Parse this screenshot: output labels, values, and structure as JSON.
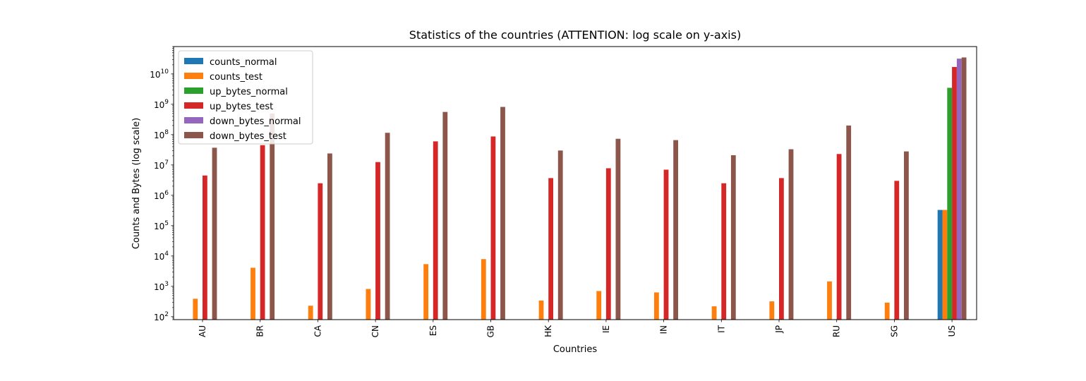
{
  "chart_data": {
    "type": "bar",
    "title": "Statistics of the countries (ATTENTION: log scale on y-axis)",
    "xlabel": "Countries",
    "ylabel": "Counts and Bytes (log scale)",
    "yscale": "log",
    "ylim": [
      80,
      80000000000
    ],
    "yticks": [
      {
        "base": "10",
        "exp": "2",
        "value": 100
      },
      {
        "base": "10",
        "exp": "3",
        "value": 1000
      },
      {
        "base": "10",
        "exp": "4",
        "value": 10000
      },
      {
        "base": "10",
        "exp": "5",
        "value": 100000
      },
      {
        "base": "10",
        "exp": "6",
        "value": 1000000
      },
      {
        "base": "10",
        "exp": "7",
        "value": 10000000
      },
      {
        "base": "10",
        "exp": "8",
        "value": 100000000
      },
      {
        "base": "10",
        "exp": "9",
        "value": 1000000000
      },
      {
        "base": "10",
        "exp": "10",
        "value": 10000000000
      }
    ],
    "grid": false,
    "legend_position": "top-left",
    "categories": [
      "AU",
      "BR",
      "CA",
      "CN",
      "ES",
      "GB",
      "HK",
      "IE",
      "IN",
      "IT",
      "JP",
      "RU",
      "SG",
      "US"
    ],
    "series": [
      {
        "name": "counts_normal",
        "color": "#1f77b4",
        "values": [
          null,
          null,
          null,
          null,
          null,
          null,
          null,
          null,
          null,
          null,
          null,
          null,
          null,
          330000
        ]
      },
      {
        "name": "counts_test",
        "color": "#ff7f0e",
        "values": [
          390,
          4100,
          230,
          820,
          5400,
          7900,
          340,
          700,
          630,
          220,
          320,
          1450,
          290,
          330000
        ]
      },
      {
        "name": "up_bytes_normal",
        "color": "#2ca02c",
        "values": [
          null,
          null,
          null,
          null,
          null,
          null,
          null,
          null,
          null,
          null,
          null,
          null,
          null,
          3500000000
        ]
      },
      {
        "name": "up_bytes_test",
        "color": "#d62728",
        "values": [
          4500000,
          45000000,
          2500000,
          12500000,
          60000000,
          87000000,
          3700000,
          7800000,
          7000000,
          2500000,
          3700000,
          23000000,
          3000000,
          17000000000
        ]
      },
      {
        "name": "down_bytes_normal",
        "color": "#9467bd",
        "values": [
          null,
          null,
          null,
          null,
          null,
          null,
          null,
          null,
          null,
          null,
          null,
          null,
          null,
          32000000000
        ]
      },
      {
        "name": "down_bytes_test",
        "color": "#8c564b",
        "values": [
          37000000,
          500000000,
          24000000,
          115000000,
          560000000,
          820000000,
          30000000,
          73000000,
          66000000,
          21000000,
          33000000,
          200000000,
          28000000,
          35000000000
        ]
      }
    ]
  }
}
